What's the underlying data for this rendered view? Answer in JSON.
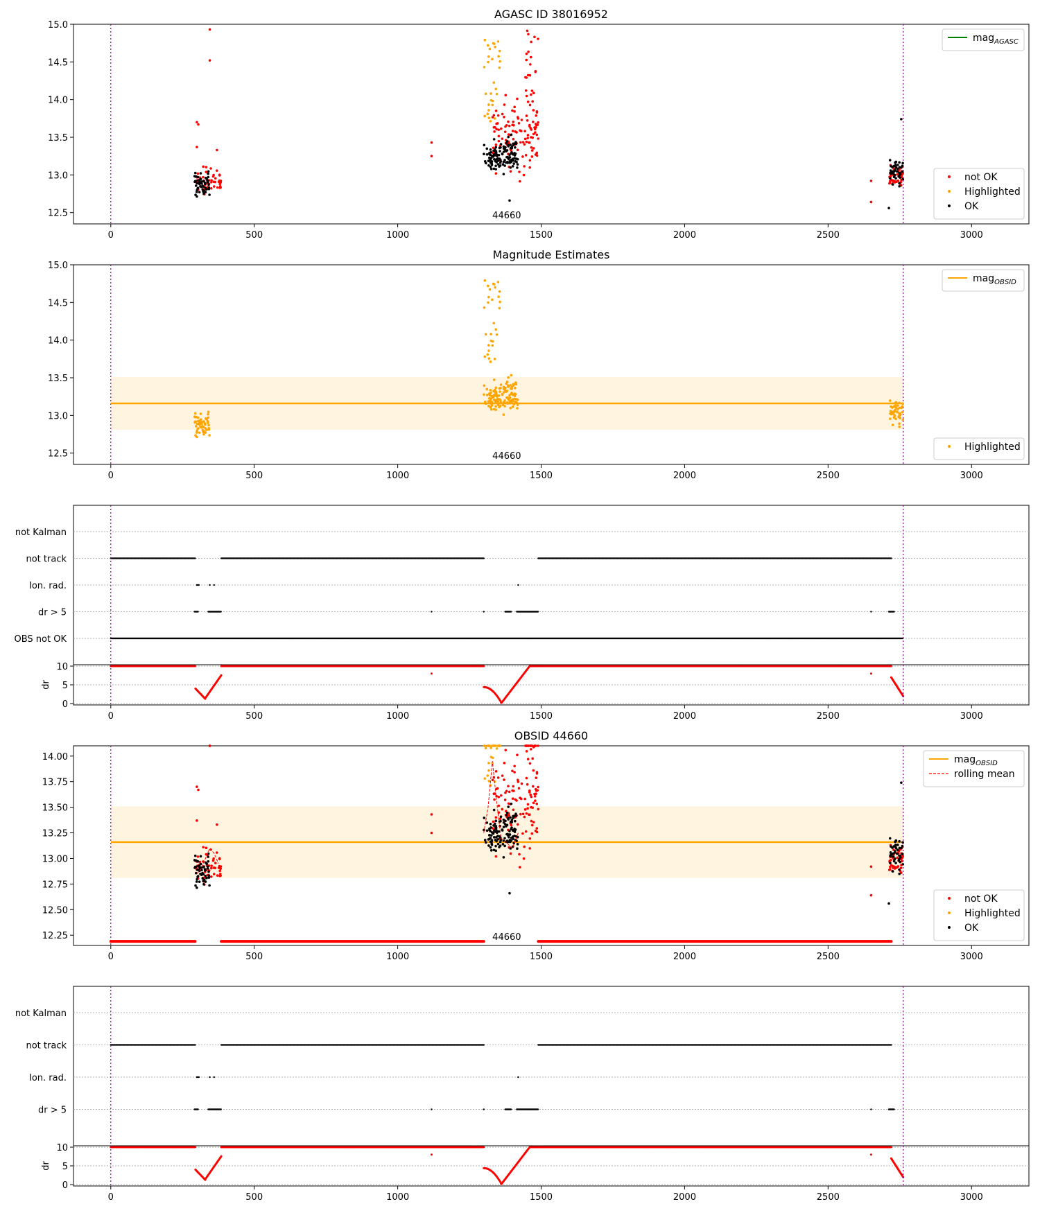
{
  "figure": {
    "obsid_marker_label": "44660"
  },
  "chart_data": [
    {
      "id": "p1",
      "type": "scatter",
      "title": "AGASC ID 38016952",
      "xlim": [
        -130,
        3200
      ],
      "ylim": [
        12.35,
        15.0
      ],
      "xticks": [
        0,
        500,
        1000,
        1500,
        2000,
        2500,
        3000
      ],
      "yticks": [
        12.5,
        13.0,
        13.5,
        14.0,
        14.5,
        15.0
      ],
      "ytick_labels": [
        "12.5",
        "13.0",
        "13.5",
        "14.0",
        "14.5",
        "15.0"
      ],
      "vlines": [
        0,
        2762
      ],
      "obsid_label_x": 1380,
      "legends": [
        {
          "position": "top-right",
          "entries": [
            {
              "label": "mag",
              "subscript": "AGASC",
              "kind": "line",
              "color": "#008000"
            }
          ]
        },
        {
          "position": "lower-right",
          "entries": [
            {
              "label": "not OK",
              "kind": "dot",
              "color": "#ff0000"
            },
            {
              "label": "Highlighted",
              "kind": "dot",
              "color": "#ffa500"
            },
            {
              "label": "OK",
              "kind": "dot",
              "color": "#000000"
            }
          ]
        }
      ]
    },
    {
      "id": "p2",
      "type": "scatter",
      "title": "Magnitude Estimates",
      "xlim": [
        -130,
        3200
      ],
      "ylim": [
        12.35,
        15.0
      ],
      "xticks": [
        0,
        500,
        1000,
        1500,
        2000,
        2500,
        3000
      ],
      "yticks": [
        12.5,
        13.0,
        13.5,
        14.0,
        14.5,
        15.0
      ],
      "ytick_labels": [
        "12.5",
        "13.0",
        "13.5",
        "14.0",
        "14.5",
        "15.0"
      ],
      "vlines": [
        0,
        2762
      ],
      "mag_obsid": 13.16,
      "mag_band": [
        12.81,
        13.51
      ],
      "obsid_label_x": 1380,
      "legends": [
        {
          "position": "top-right",
          "entries": [
            {
              "label": "mag",
              "subscript": "OBSID",
              "kind": "line",
              "color": "#ffa500"
            }
          ]
        },
        {
          "position": "lower-right",
          "entries": [
            {
              "label": "Highlighted",
              "kind": "dot",
              "color": "#ffa500"
            }
          ]
        }
      ]
    },
    {
      "id": "p3",
      "type": "scatter",
      "title": "",
      "xlim": [
        -130,
        3200
      ],
      "flag_labels": [
        "not Kalman",
        "not track",
        "Ion. rad.",
        "dr > 5",
        "OBS not OK"
      ],
      "vlines": [
        0,
        2762
      ],
      "dr_ylim": [
        0,
        10
      ],
      "dr_yticks": [
        0,
        5,
        10
      ],
      "dr_ylabel": "dr"
    },
    {
      "id": "p4",
      "type": "scatter",
      "title": "OBSID 44660",
      "xlim": [
        -130,
        3200
      ],
      "ylim": [
        12.15,
        14.1
      ],
      "xticks": [
        0,
        500,
        1000,
        1500,
        2000,
        2500,
        3000
      ],
      "yticks": [
        12.25,
        12.5,
        12.75,
        13.0,
        13.25,
        13.5,
        13.75,
        14.0
      ],
      "ytick_labels": [
        "12.25",
        "12.50",
        "12.75",
        "13.00",
        "13.25",
        "13.50",
        "13.75",
        "14.00"
      ],
      "vlines": [
        0,
        2762
      ],
      "mag_obsid": 13.16,
      "mag_band": [
        12.81,
        13.51
      ],
      "obsid_label_x": 1380,
      "legends": [
        {
          "position": "top-right",
          "entries": [
            {
              "label": "mag",
              "subscript": "OBSID",
              "kind": "line",
              "color": "#ffa500"
            },
            {
              "label": "rolling mean",
              "kind": "dashed",
              "color": "#ff0000"
            }
          ]
        },
        {
          "position": "lower-right",
          "entries": [
            {
              "label": "not OK",
              "kind": "dot",
              "color": "#ff0000"
            },
            {
              "label": "Highlighted",
              "kind": "dot",
              "color": "#ffa500"
            },
            {
              "label": "OK",
              "kind": "dot",
              "color": "#000000"
            }
          ]
        }
      ]
    },
    {
      "id": "p5",
      "type": "scatter",
      "title": "",
      "xlim": [
        -130,
        3200
      ],
      "flag_labels": [
        "not Kalman",
        "not track",
        "Ion. rad.",
        "dr > 5"
      ],
      "vlines": [
        0,
        2762
      ],
      "dr_ylim": [
        0,
        10
      ],
      "dr_yticks": [
        0,
        5,
        10
      ],
      "dr_ylabel": "dr"
    }
  ]
}
